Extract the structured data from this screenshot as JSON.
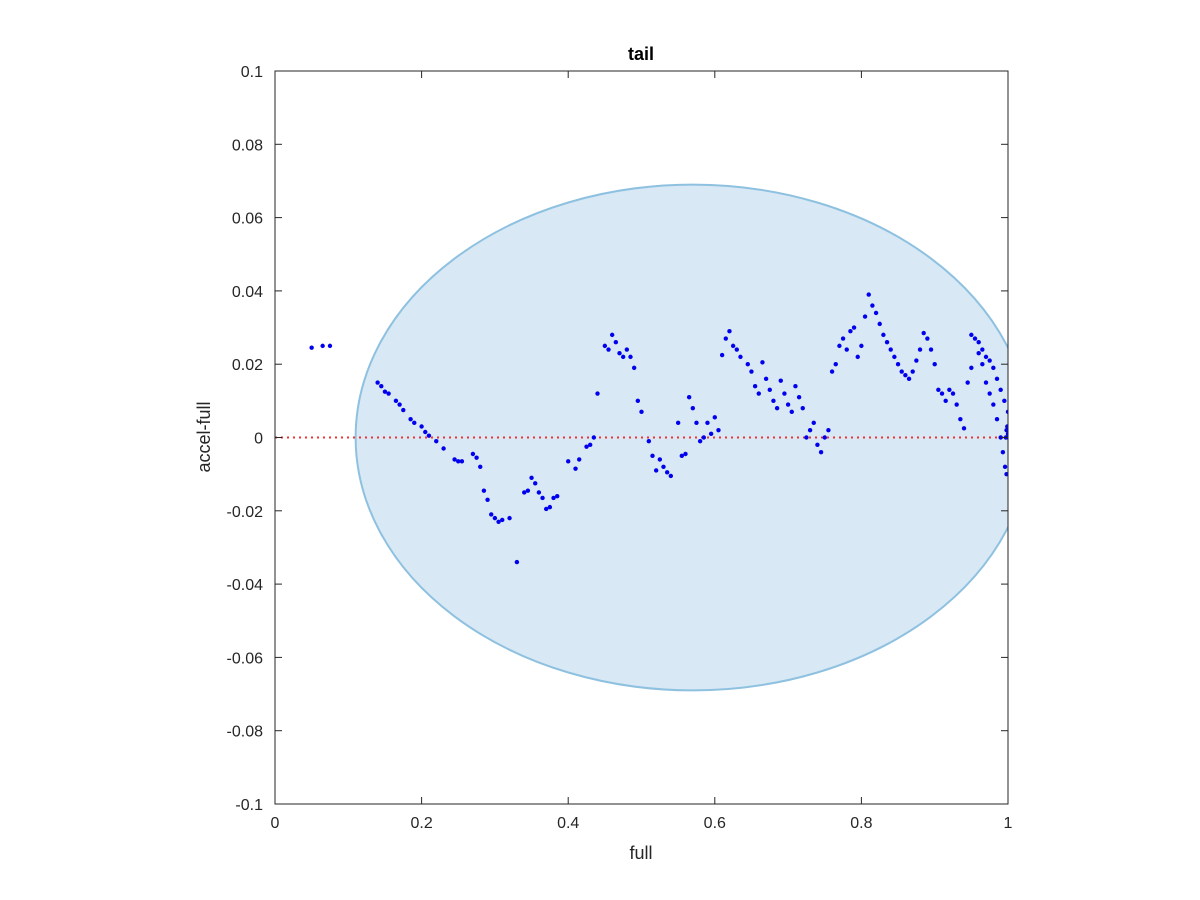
{
  "chart_data": {
    "type": "scatter",
    "title": "tail",
    "xlabel": "full",
    "ylabel": "accel-full",
    "xlim": [
      0,
      1
    ],
    "ylim": [
      -0.1,
      0.1
    ],
    "xticks": [
      0,
      0.2,
      0.4,
      0.6,
      0.8,
      1
    ],
    "xtick_labels": [
      "0",
      "0.2",
      "0.4",
      "0.6",
      "0.8",
      "1"
    ],
    "yticks": [
      -0.1,
      -0.08,
      -0.06,
      -0.04,
      -0.02,
      0,
      0.02,
      0.04,
      0.06,
      0.08,
      0.1
    ],
    "ytick_labels": [
      "-0.1",
      "-0.08",
      "-0.06",
      "-0.04",
      "-0.02",
      "0",
      "0.02",
      "0.04",
      "0.06",
      "0.08",
      "0.1"
    ],
    "grid": false,
    "colors": {
      "points": "#0000ee",
      "zero_line": "#ee3333",
      "ellipse_fill": "#d8e8f4",
      "ellipse_edge": "#8ec1e0",
      "axes": "#262626"
    },
    "zero_line": {
      "y": 0,
      "style": "dotted"
    },
    "ellipse": {
      "center_x": 0.57,
      "center_y": 0.0,
      "radius_x": 0.46,
      "radius_y": 0.069
    },
    "points": [
      [
        0.05,
        0.0245
      ],
      [
        0.065,
        0.025
      ],
      [
        0.075,
        0.025
      ],
      [
        0.14,
        0.015
      ],
      [
        0.145,
        0.014
      ],
      [
        0.15,
        0.0125
      ],
      [
        0.155,
        0.012
      ],
      [
        0.165,
        0.01
      ],
      [
        0.17,
        0.009
      ],
      [
        0.175,
        0.0075
      ],
      [
        0.185,
        0.005
      ],
      [
        0.19,
        0.004
      ],
      [
        0.2,
        0.003
      ],
      [
        0.205,
        0.0015
      ],
      [
        0.21,
        0.0005
      ],
      [
        0.22,
        -0.001
      ],
      [
        0.23,
        -0.003
      ],
      [
        0.245,
        -0.006
      ],
      [
        0.25,
        -0.0065
      ],
      [
        0.255,
        -0.0065
      ],
      [
        0.27,
        -0.0045
      ],
      [
        0.275,
        -0.0055
      ],
      [
        0.28,
        -0.008
      ],
      [
        0.285,
        -0.0145
      ],
      [
        0.29,
        -0.017
      ],
      [
        0.295,
        -0.021
      ],
      [
        0.3,
        -0.022
      ],
      [
        0.305,
        -0.023
      ],
      [
        0.31,
        -0.0225
      ],
      [
        0.32,
        -0.022
      ],
      [
        0.33,
        -0.034
      ],
      [
        0.34,
        -0.015
      ],
      [
        0.345,
        -0.0145
      ],
      [
        0.35,
        -0.011
      ],
      [
        0.355,
        -0.0125
      ],
      [
        0.36,
        -0.015
      ],
      [
        0.365,
        -0.0165
      ],
      [
        0.37,
        -0.0195
      ],
      [
        0.375,
        -0.019
      ],
      [
        0.38,
        -0.0165
      ],
      [
        0.385,
        -0.016
      ],
      [
        0.4,
        -0.0065
      ],
      [
        0.41,
        -0.0085
      ],
      [
        0.415,
        -0.006
      ],
      [
        0.425,
        -0.0025
      ],
      [
        0.43,
        -0.002
      ],
      [
        0.435,
        0.0
      ],
      [
        0.44,
        0.012
      ],
      [
        0.45,
        0.025
      ],
      [
        0.455,
        0.024
      ],
      [
        0.46,
        0.028
      ],
      [
        0.465,
        0.026
      ],
      [
        0.47,
        0.023
      ],
      [
        0.475,
        0.022
      ],
      [
        0.48,
        0.024
      ],
      [
        0.485,
        0.022
      ],
      [
        0.49,
        0.019
      ],
      [
        0.495,
        0.01
      ],
      [
        0.5,
        0.007
      ],
      [
        0.51,
        -0.001
      ],
      [
        0.515,
        -0.005
      ],
      [
        0.52,
        -0.009
      ],
      [
        0.525,
        -0.006
      ],
      [
        0.53,
        -0.008
      ],
      [
        0.535,
        -0.0095
      ],
      [
        0.54,
        -0.0105
      ],
      [
        0.55,
        0.004
      ],
      [
        0.555,
        -0.005
      ],
      [
        0.56,
        -0.0045
      ],
      [
        0.565,
        0.011
      ],
      [
        0.57,
        0.008
      ],
      [
        0.575,
        0.004
      ],
      [
        0.58,
        -0.001
      ],
      [
        0.585,
        0.0
      ],
      [
        0.59,
        0.004
      ],
      [
        0.595,
        0.001
      ],
      [
        0.6,
        0.0055
      ],
      [
        0.605,
        0.002
      ],
      [
        0.61,
        0.0225
      ],
      [
        0.615,
        0.027
      ],
      [
        0.62,
        0.029
      ],
      [
        0.625,
        0.025
      ],
      [
        0.63,
        0.024
      ],
      [
        0.635,
        0.022
      ],
      [
        0.645,
        0.02
      ],
      [
        0.65,
        0.018
      ],
      [
        0.655,
        0.014
      ],
      [
        0.66,
        0.012
      ],
      [
        0.665,
        0.0205
      ],
      [
        0.67,
        0.016
      ],
      [
        0.675,
        0.013
      ],
      [
        0.68,
        0.01
      ],
      [
        0.685,
        0.008
      ],
      [
        0.69,
        0.0155
      ],
      [
        0.695,
        0.012
      ],
      [
        0.7,
        0.009
      ],
      [
        0.705,
        0.007
      ],
      [
        0.71,
        0.014
      ],
      [
        0.715,
        0.011
      ],
      [
        0.72,
        0.008
      ],
      [
        0.725,
        0.0
      ],
      [
        0.73,
        0.002
      ],
      [
        0.735,
        0.004
      ],
      [
        0.74,
        -0.002
      ],
      [
        0.745,
        -0.004
      ],
      [
        0.75,
        0.0
      ],
      [
        0.755,
        0.002
      ],
      [
        0.76,
        0.018
      ],
      [
        0.765,
        0.02
      ],
      [
        0.77,
        0.025
      ],
      [
        0.775,
        0.027
      ],
      [
        0.78,
        0.024
      ],
      [
        0.785,
        0.029
      ],
      [
        0.79,
        0.03
      ],
      [
        0.795,
        0.022
      ],
      [
        0.8,
        0.025
      ],
      [
        0.805,
        0.033
      ],
      [
        0.81,
        0.039
      ],
      [
        0.815,
        0.036
      ],
      [
        0.82,
        0.034
      ],
      [
        0.825,
        0.031
      ],
      [
        0.83,
        0.028
      ],
      [
        0.835,
        0.026
      ],
      [
        0.84,
        0.024
      ],
      [
        0.845,
        0.022
      ],
      [
        0.85,
        0.02
      ],
      [
        0.855,
        0.018
      ],
      [
        0.86,
        0.017
      ],
      [
        0.865,
        0.016
      ],
      [
        0.87,
        0.018
      ],
      [
        0.875,
        0.021
      ],
      [
        0.88,
        0.024
      ],
      [
        0.885,
        0.0285
      ],
      [
        0.89,
        0.027
      ],
      [
        0.895,
        0.024
      ],
      [
        0.9,
        0.02
      ],
      [
        0.905,
        0.013
      ],
      [
        0.91,
        0.012
      ],
      [
        0.915,
        0.01
      ],
      [
        0.92,
        0.013
      ],
      [
        0.925,
        0.012
      ],
      [
        0.93,
        0.009
      ],
      [
        0.935,
        0.005
      ],
      [
        0.94,
        0.0025
      ],
      [
        0.945,
        0.015
      ],
      [
        0.95,
        0.019
      ],
      [
        0.955,
        0.027
      ],
      [
        0.96,
        0.026
      ],
      [
        0.965,
        0.024
      ],
      [
        0.97,
        0.022
      ],
      [
        0.975,
        0.021
      ],
      [
        0.98,
        0.019
      ],
      [
        0.985,
        0.016
      ],
      [
        0.99,
        0.013
      ],
      [
        0.995,
        0.01
      ],
      [
        1.0,
        0.007
      ],
      [
        0.95,
        0.028
      ],
      [
        0.96,
        0.023
      ],
      [
        0.965,
        0.02
      ],
      [
        0.97,
        0.015
      ],
      [
        0.975,
        0.012
      ],
      [
        0.98,
        0.009
      ],
      [
        0.985,
        0.005
      ],
      [
        0.99,
        0.0
      ],
      [
        0.993,
        -0.004
      ],
      [
        0.996,
        -0.008
      ],
      [
        0.998,
        -0.01
      ],
      [
        0.997,
        0.0
      ],
      [
        0.998,
        0.002
      ],
      [
        0.999,
        0.003
      ],
      [
        1.0,
        0.0
      ],
      [
        1.0,
        0.001
      ]
    ]
  }
}
